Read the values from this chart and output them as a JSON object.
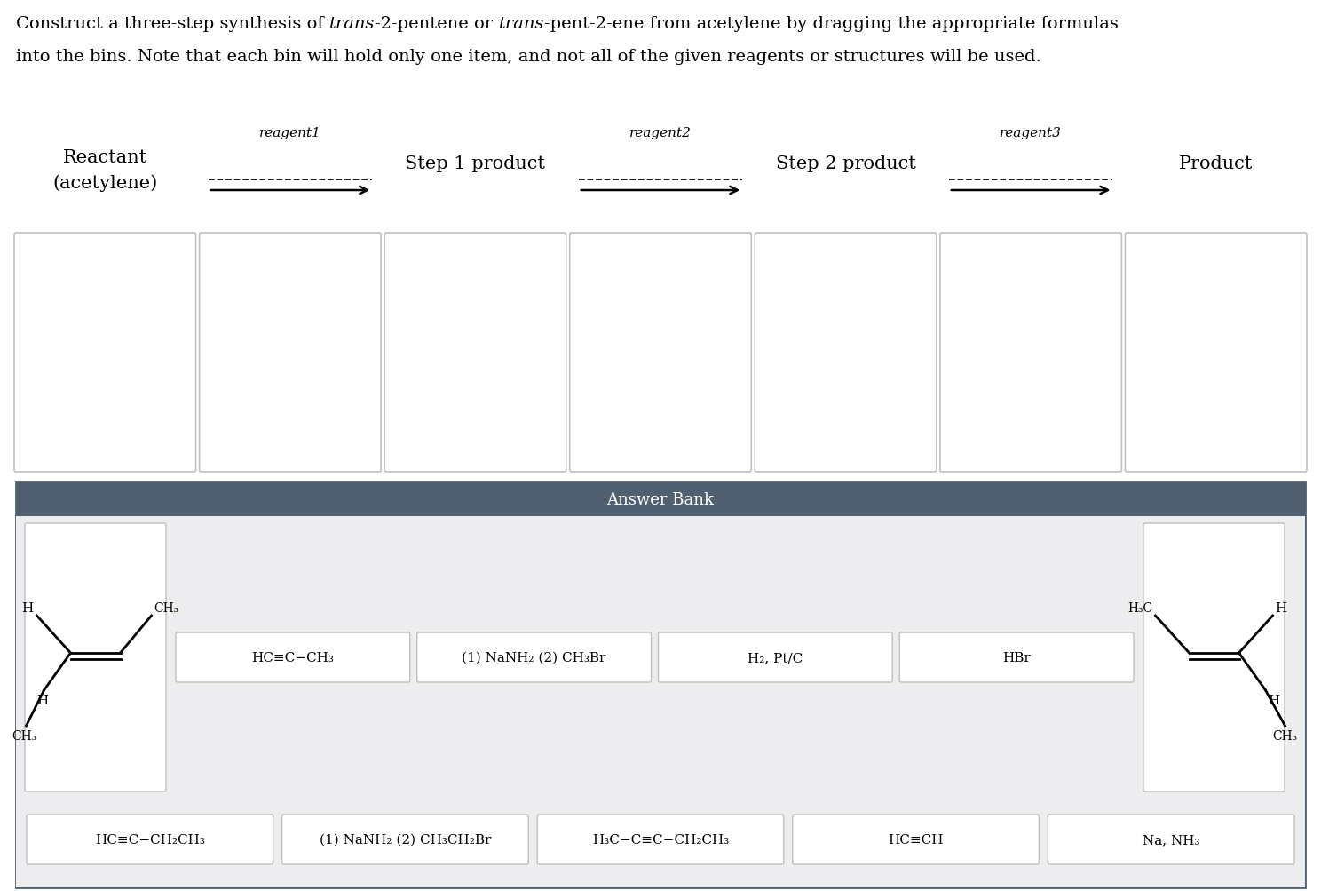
{
  "bg_color": "#ffffff",
  "answer_bank_header_color": "#506070",
  "answer_bank_inner_color": "#ededef",
  "box_edge_color": "#c0c0c0",
  "box_face_color": "#ffffff",
  "serif": "DejaVu Serif",
  "title_parts_line1": [
    [
      "Construct a three-step synthesis of ",
      false
    ],
    [
      "trans",
      true
    ],
    [
      "-2-pentene or ",
      false
    ],
    [
      "trans",
      true
    ],
    [
      "-pent-2-ene from acetylene by dragging the appropriate formulas",
      false
    ]
  ],
  "title_line2": "into the bins. Note that each bin will hold only one item, and not all of the given reagents or structures will be used.",
  "reactant_label1": "Reactant",
  "reactant_label2": "(acetylene)",
  "step1_label": "Step 1 product",
  "step2_label": "Step 2 product",
  "product_label": "Product",
  "reagent_labels": [
    "reagent1",
    "reagent2",
    "reagent3"
  ],
  "answer_bank_title": "Answer Bank",
  "small_row1": [
    "HC≡C−CH₃",
    "(1) NaNH₂ (2) CH₃Br",
    "H₂, Pt/C",
    "HBr"
  ],
  "small_row2": [
    "HC≡C−CH₂CH₃",
    "(1) NaNH₂ (2) CH₃CH₂Br",
    "H₃C−C≡C−CH₂CH₃",
    "HC≡CH",
    "Na, NH₃"
  ]
}
